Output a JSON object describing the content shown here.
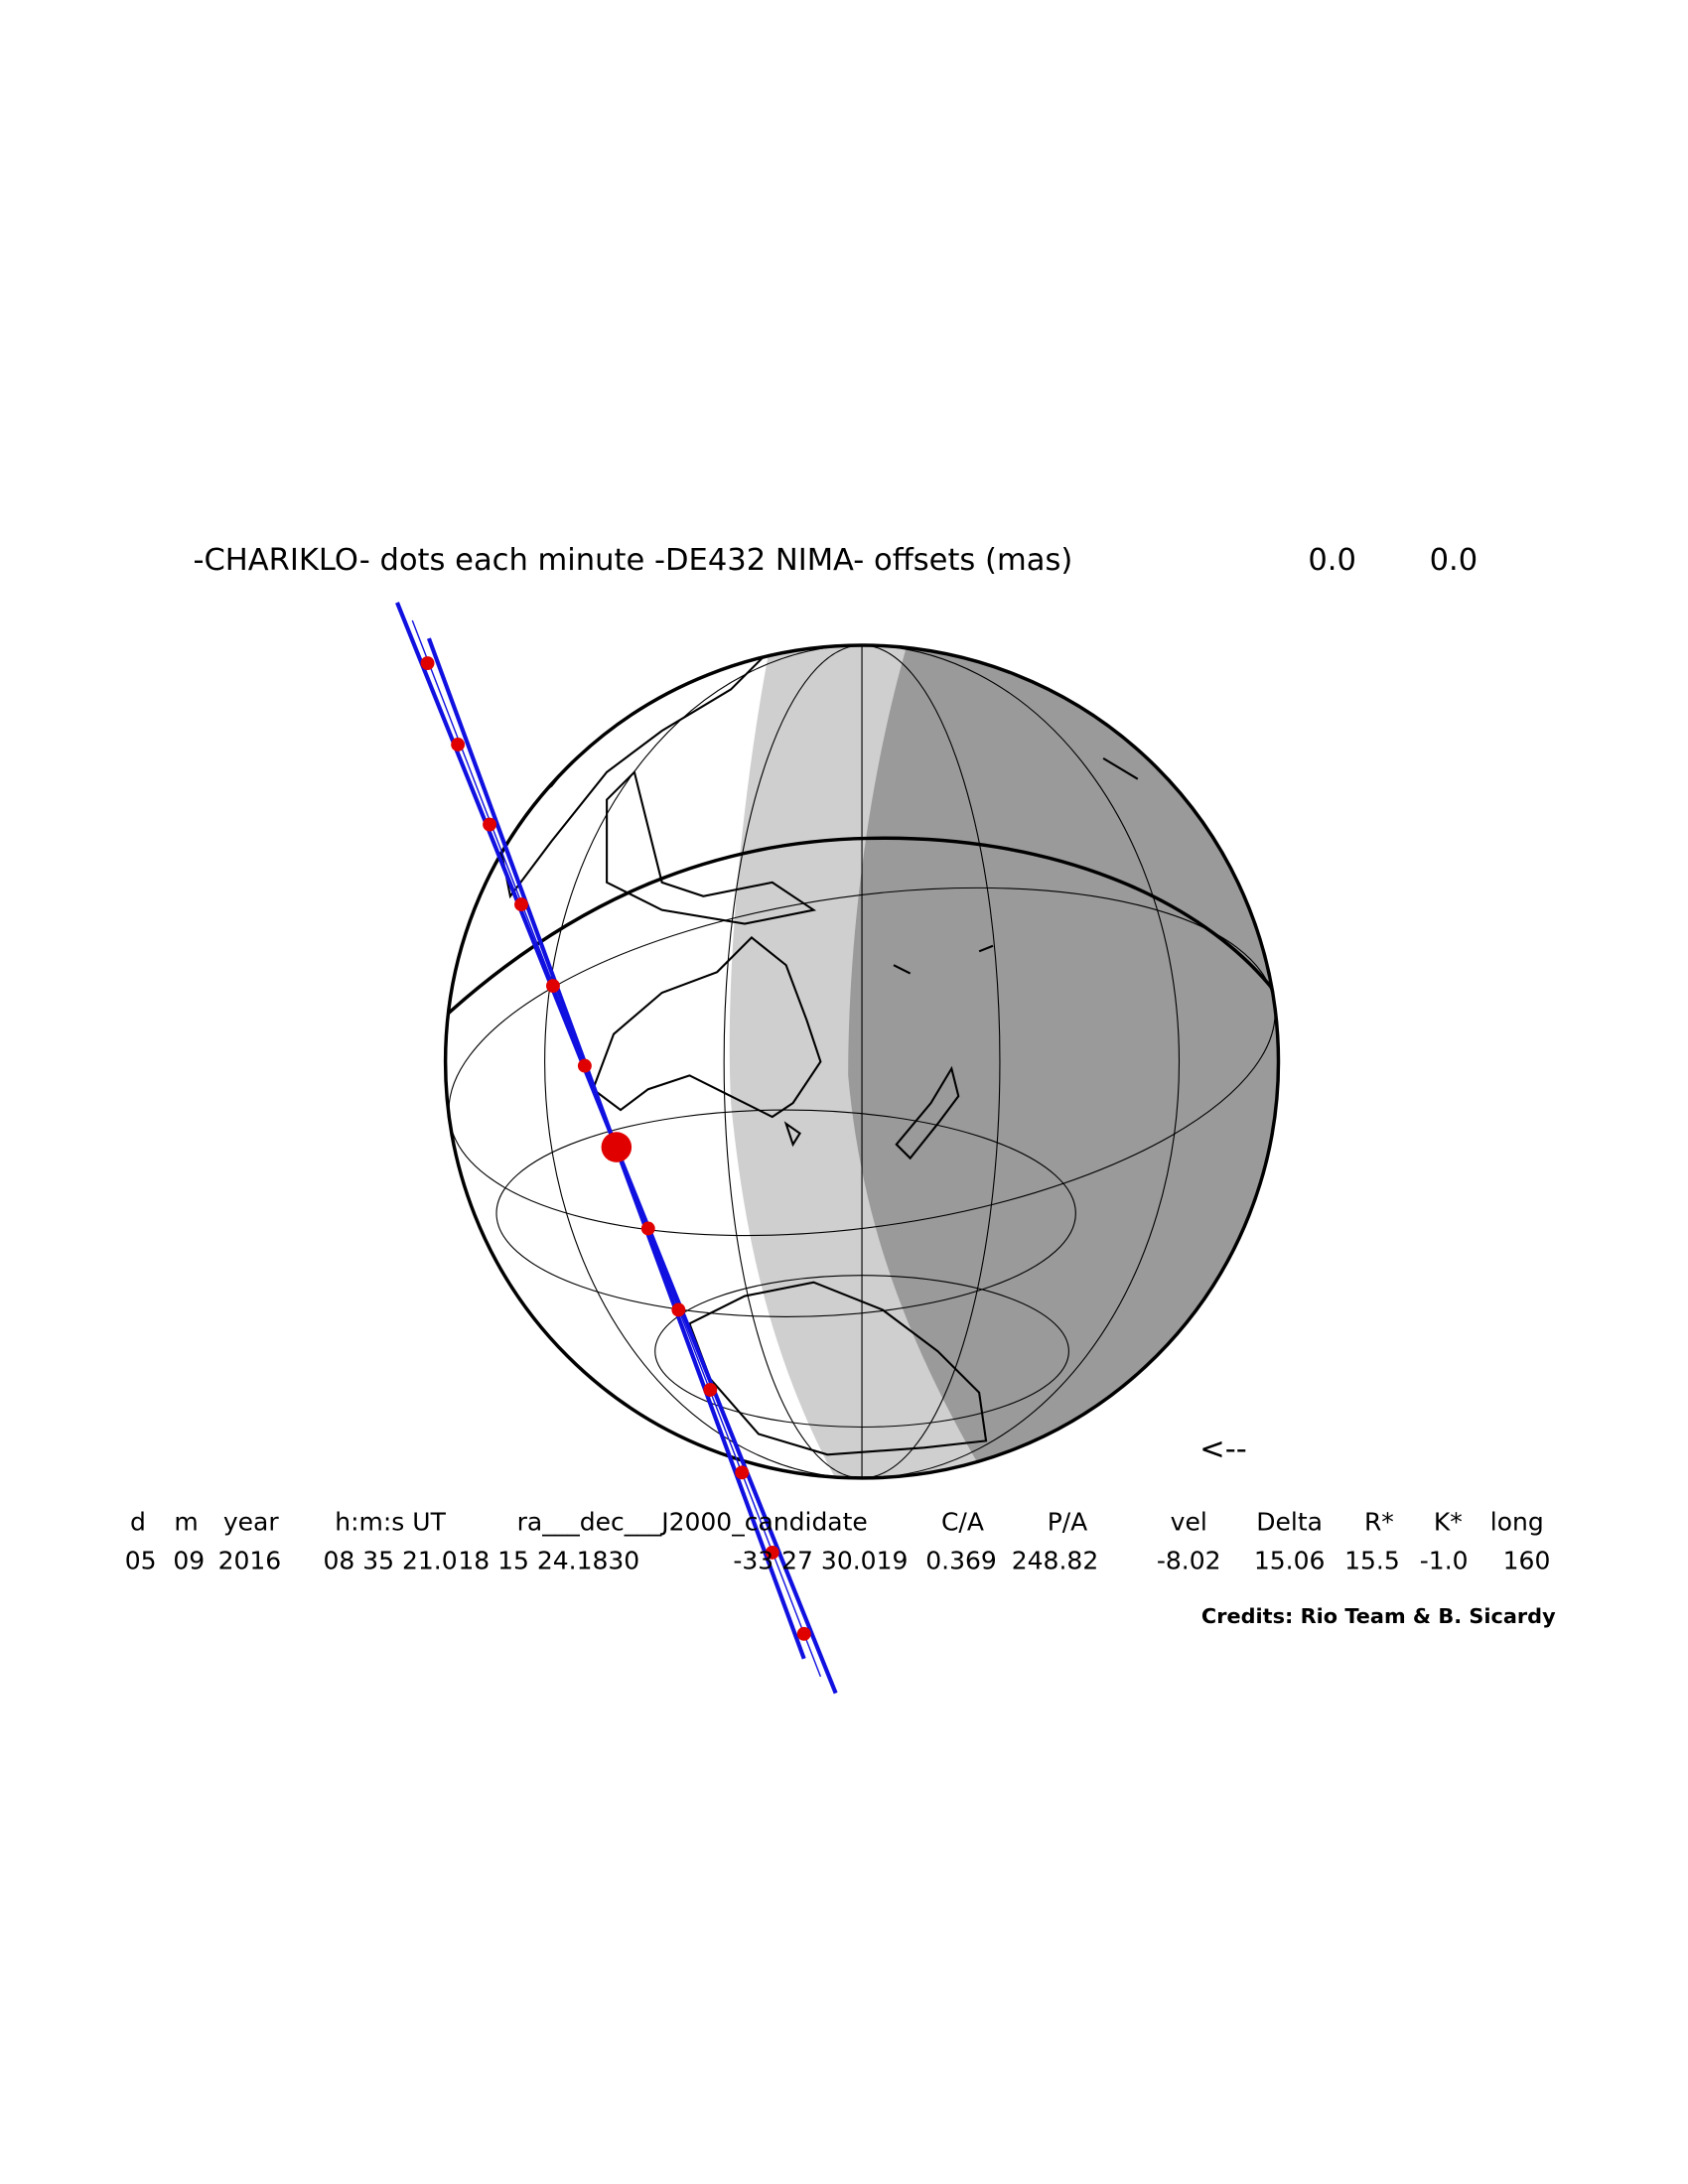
{
  "title": {
    "text": "-CHARIKLO- dots each minute -DE432 NIMA- offsets (mas)",
    "offsets": [
      "0.0",
      "0.0"
    ]
  },
  "direction_arrow": "<--",
  "table": {
    "header": [
      "d",
      "m",
      "year",
      "h:m:s UT",
      "ra___dec___J2000_candidate",
      "C/A",
      "P/A",
      "vel",
      "Delta",
      "R*",
      "K*",
      "long"
    ],
    "row": [
      "05",
      "09",
      "2016",
      "08 35 21.0",
      "18 15 24.1830",
      "-33 27 30.019",
      "0.369",
      "248.82",
      "-8.02",
      "15.06",
      "15.5",
      "-1.0",
      "160"
    ]
  },
  "credits": "Credits: Rio Team & B. Sicardy"
}
